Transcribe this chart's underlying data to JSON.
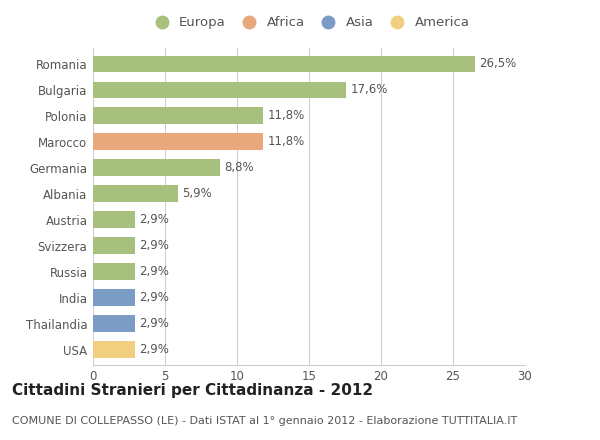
{
  "categories": [
    "Romania",
    "Bulgaria",
    "Polonia",
    "Marocco",
    "Germania",
    "Albania",
    "Austria",
    "Svizzera",
    "Russia",
    "India",
    "Thailandia",
    "USA"
  ],
  "values": [
    26.5,
    17.6,
    11.8,
    11.8,
    8.8,
    5.9,
    2.9,
    2.9,
    2.9,
    2.9,
    2.9,
    2.9
  ],
  "labels": [
    "26,5%",
    "17,6%",
    "11,8%",
    "11,8%",
    "8,8%",
    "5,9%",
    "2,9%",
    "2,9%",
    "2,9%",
    "2,9%",
    "2,9%",
    "2,9%"
  ],
  "colors": [
    "#a8c07e",
    "#a8c07e",
    "#a8c07e",
    "#e8a87c",
    "#a8c07e",
    "#a8c07e",
    "#a8c07e",
    "#a8c07e",
    "#a8c07e",
    "#7b9cc4",
    "#7b9cc4",
    "#f0d080"
  ],
  "legend_labels": [
    "Europa",
    "Africa",
    "Asia",
    "America"
  ],
  "legend_colors": [
    "#a8c07e",
    "#e8a87c",
    "#7b9cc4",
    "#f0d080"
  ],
  "title": "Cittadini Stranieri per Cittadinanza - 2012",
  "subtitle": "COMUNE DI COLLEPASSO (LE) - Dati ISTAT al 1° gennaio 2012 - Elaborazione TUTTITALIA.IT",
  "xlim": [
    0,
    30
  ],
  "xticks": [
    0,
    5,
    10,
    15,
    20,
    25,
    30
  ],
  "background_color": "#ffffff",
  "grid_color": "#cccccc",
  "bar_height": 0.65,
  "title_fontsize": 11,
  "subtitle_fontsize": 8,
  "label_fontsize": 8.5,
  "tick_fontsize": 8.5,
  "legend_fontsize": 9.5
}
